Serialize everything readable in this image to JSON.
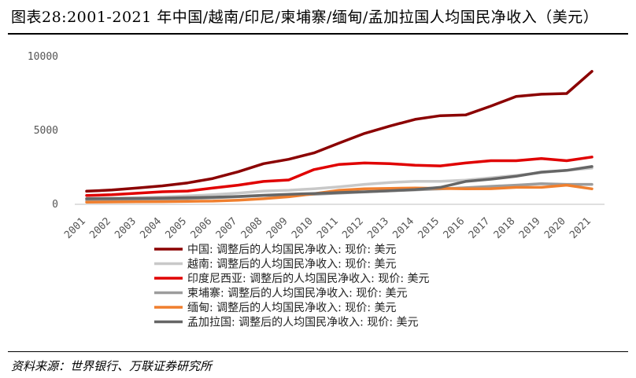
{
  "title": "图表28:2001-2021 年中国/越南/印尼/柬埔寨/缅甸/孟加拉国人均国民净收入（美元）",
  "source": "资料来源：世界银行、万联证券研究所",
  "chart_data": {
    "type": "line",
    "x": [
      "2001",
      "2002",
      "2003",
      "2004",
      "2005",
      "2006",
      "2007",
      "2008",
      "2009",
      "2010",
      "2011",
      "2012",
      "2013",
      "2014",
      "2015",
      "2016",
      "2017",
      "2018",
      "2019",
      "2020",
      "2021"
    ],
    "ylim": [
      0,
      10000
    ],
    "yticks": [
      "0",
      "5000",
      "10000"
    ],
    "grid": false,
    "legend_position": "bottom",
    "series": [
      {
        "name": "中国: 调整后的人均国民净收入: 现价: 美元",
        "color": "#8b0000",
        "values": [
          890,
          970,
          1100,
          1250,
          1450,
          1750,
          2200,
          2750,
          3050,
          3480,
          4150,
          4800,
          5300,
          5750,
          6000,
          6050,
          6650,
          7300,
          7450,
          7500,
          9000
        ]
      },
      {
        "name": "越南: 调整后的人均国民净收入: 现价: 美元",
        "color": "#c8c8c8",
        "values": [
          400,
          420,
          450,
          500,
          570,
          650,
          760,
          900,
          950,
          1050,
          1180,
          1350,
          1480,
          1560,
          1560,
          1640,
          1800,
          1950,
          2150,
          2300,
          2450
        ]
      },
      {
        "name": "印度尼西亚: 调整后的人均国民净收入: 现价: 美元",
        "color": "#e00000",
        "values": [
          600,
          650,
          750,
          850,
          900,
          1100,
          1300,
          1550,
          1650,
          2350,
          2700,
          2800,
          2750,
          2650,
          2600,
          2800,
          2950,
          2950,
          3100,
          2950,
          3200
        ]
      },
      {
        "name": "柬埔寨: 调整后的人均国民净收入: 现价: 美元",
        "color": "#9c9c9c",
        "values": [
          280,
          300,
          320,
          340,
          390,
          440,
          510,
          600,
          620,
          680,
          760,
          840,
          910,
          980,
          1040,
          1120,
          1220,
          1300,
          1400,
          1350,
          1350
        ]
      },
      {
        "name": "缅甸: 调整后的人均国民净收入: 现价: 美元",
        "color": "#f07f2e",
        "values": [
          150,
          160,
          170,
          180,
          200,
          220,
          280,
          380,
          510,
          720,
          950,
          1050,
          1080,
          1100,
          1080,
          1050,
          1060,
          1150,
          1150,
          1300,
          1050
        ]
      },
      {
        "name": "孟加拉国: 调整后的人均国民净收入: 现价: 美元",
        "color": "#666666",
        "values": [
          380,
          390,
          400,
          420,
          450,
          480,
          530,
          610,
          680,
          730,
          800,
          850,
          920,
          1000,
          1150,
          1550,
          1700,
          1900,
          2180,
          2300,
          2560
        ]
      }
    ]
  }
}
